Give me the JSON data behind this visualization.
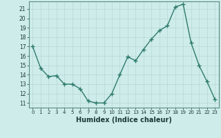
{
  "x": [
    0,
    1,
    2,
    3,
    4,
    5,
    6,
    7,
    8,
    9,
    10,
    11,
    12,
    13,
    14,
    15,
    16,
    17,
    18,
    19,
    20,
    21,
    22,
    23
  ],
  "y": [
    17.0,
    14.7,
    13.8,
    13.9,
    13.0,
    13.0,
    12.5,
    11.2,
    11.0,
    11.0,
    12.0,
    14.0,
    15.9,
    15.5,
    16.7,
    17.8,
    18.7,
    19.2,
    21.2,
    21.5,
    17.4,
    15.0,
    13.3,
    11.4
  ],
  "bg_color": "#ceecea",
  "line_color": "#2d7a6a",
  "marker": "+",
  "markersize": 4,
  "linewidth": 1.0,
  "xlabel": "Humidex (Indice chaleur)",
  "xlabel_fontsize": 7,
  "ylim": [
    10.5,
    21.8
  ],
  "xlim": [
    -0.5,
    23.5
  ],
  "grid_color": "#b8d8d4",
  "xtick_fontsize": 5,
  "ytick_fontsize": 5.5,
  "tick_color": "#1a3a35",
  "spine_color": "#5a8a80"
}
